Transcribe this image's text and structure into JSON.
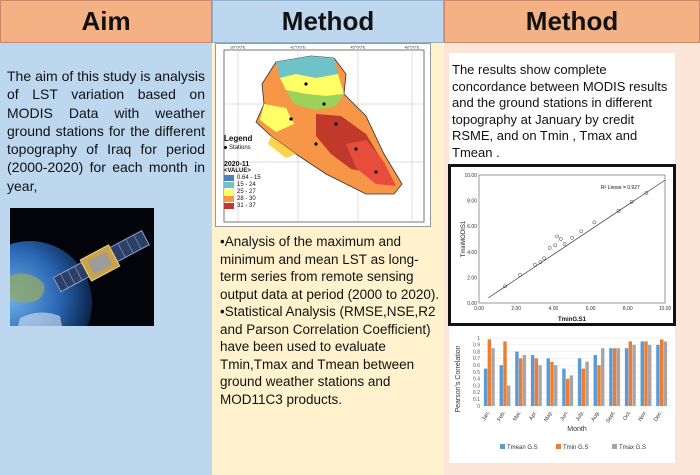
{
  "headers": {
    "col1": "Aim",
    "col2": "Method",
    "col3": "Method"
  },
  "aim_text": "The aim of this study is analysis of LST variation based on MODIS Data with weather ground stations for the different topography of Iraq for period (2000-2020) for each month in year,",
  "method_bullets": [
    "•Analysis of the maximum and minimum and mean LST as long-term series from remote sensing output data at period (2000 to 2020).",
    "•Statistical Analysis (RMSE,NSE,R2 and Parson Correlation Coefficient) have been used to evaluate Tmin,Tmax and Tmean between ground weather stations and MOD11C3 products."
  ],
  "results_text": "The results show complete concordance between MODIS results and the ground stations in different topography at January by credit RSME, and on Tmin , Tmax and Tmean .",
  "map": {
    "lon_ticks": [
      "39°0'0\"E",
      "42°0'0\"E",
      "45°0'0\"E",
      "48°0'0\"E"
    ],
    "legend_title": "Legend",
    "legend_stations": "Stations",
    "year_label": "2020-11",
    "value_label": "<VALUE>",
    "classes": [
      {
        "label": "0.64 - 15",
        "color": "#4f81bd"
      },
      {
        "label": "15 - 24",
        "color": "#6fc2c8"
      },
      {
        "label": "25 - 27",
        "color": "#ffff66"
      },
      {
        "label": "28 - 30",
        "color": "#f79646"
      },
      {
        "label": "31 - 37",
        "color": "#c0392b"
      }
    ]
  },
  "scatter": {
    "type": "scatter",
    "annotation": "R² Linear = 0.927",
    "xlabel": "TminG.S1",
    "ylabel": "TminMODIS1",
    "x_ticks": [
      "0.00",
      "2.00",
      "4.00",
      "6.00",
      "8.00",
      "10.00"
    ],
    "y_ticks": [
      "10.00",
      "8.00",
      "6.00",
      "4.00",
      "2.00",
      "0.00"
    ],
    "xlim": [
      0,
      10
    ],
    "ylim": [
      0,
      10
    ],
    "points": [
      [
        1.4,
        1.3
      ],
      [
        2.2,
        2.2
      ],
      [
        3.0,
        3.0
      ],
      [
        3.3,
        3.2
      ],
      [
        3.5,
        3.5
      ],
      [
        3.8,
        4.3
      ],
      [
        4.1,
        4.5
      ],
      [
        4.2,
        5.2
      ],
      [
        4.4,
        5.0
      ],
      [
        4.6,
        4.6
      ],
      [
        5.0,
        5.1
      ],
      [
        5.5,
        5.6
      ],
      [
        6.2,
        6.3
      ],
      [
        7.5,
        7.2
      ],
      [
        8.2,
        7.9
      ],
      [
        9.0,
        8.6
      ]
    ]
  },
  "chart_data": {
    "type": "bar",
    "categories": [
      "Jan.",
      "Feb.",
      "Mar.",
      "Apr.",
      "May.",
      "Jun.",
      "July.",
      "Aug.",
      "Sept.",
      "Oct.",
      "Nov.",
      "Dec."
    ],
    "xlabel": "Month",
    "ylabel": "Pearson's Correlation",
    "ylim": [
      0,
      1
    ],
    "y_ticks": [
      "1",
      "0.9",
      "0.8",
      "0.7",
      "0.6",
      "0.5",
      "0.4",
      "0.3",
      "0.2",
      "0.1",
      "0"
    ],
    "series": [
      {
        "name": "Tmean G.S",
        "color": "#5b9bd5",
        "values": [
          0.55,
          0.6,
          0.8,
          0.75,
          0.7,
          0.55,
          0.7,
          0.75,
          0.85,
          0.85,
          0.95,
          0.9
        ]
      },
      {
        "name": "Tmin G.S",
        "color": "#ed7d31",
        "values": [
          0.98,
          0.95,
          0.7,
          0.7,
          0.65,
          0.4,
          0.55,
          0.6,
          0.85,
          0.95,
          0.95,
          0.98
        ]
      },
      {
        "name": "Tmax G.S",
        "color": "#a5a5a5",
        "values": [
          0.85,
          0.3,
          0.75,
          0.6,
          0.6,
          0.45,
          0.65,
          0.85,
          0.85,
          0.9,
          0.9,
          0.95
        ]
      }
    ]
  }
}
